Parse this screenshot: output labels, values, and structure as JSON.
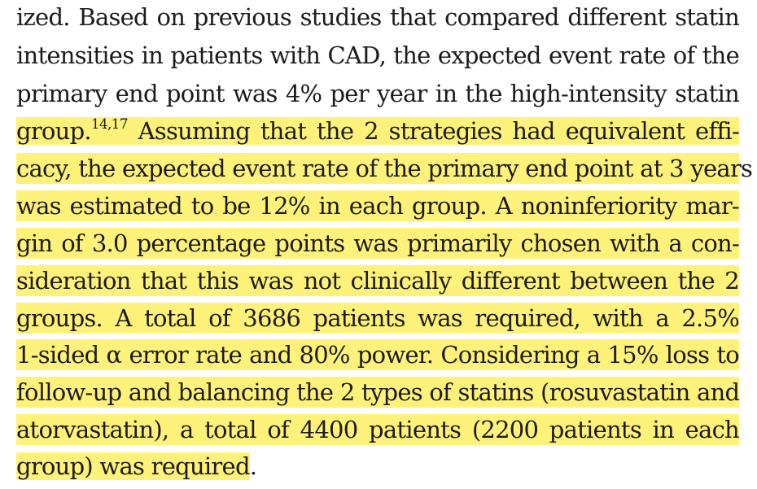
{
  "paragraph": {
    "lines": [
      "ized. Based on previous studies that compared different statin",
      "intensities in patients with CAD, the expected event rate of the",
      "primary end point was 4% per year in the high-intensity statin",
      "Assuming that the 2 strategies had equivalent effi-",
      "cacy, the expected event rate of the primary end point at 3 years",
      "was estimated to be 12% in each group. A noninferiority mar-",
      "gin of 3.0 percentage points was primarily chosen with a con-",
      "sideration that this was not clinically different between the 2",
      "groups. A total of 3686 patients was required, with a 2.5%",
      "1-sided α error rate and 80% power. Considering a 15% loss to",
      "follow-up and balancing the 2 types of statins (rosuvastatin and",
      "atorvastatin), a total of 4400 patients (2200 patients in each",
      "group) was required"
    ],
    "line4_prefix": "group.",
    "citation": "14,17",
    "final_period": "."
  },
  "highlight_color": "#fff27a"
}
